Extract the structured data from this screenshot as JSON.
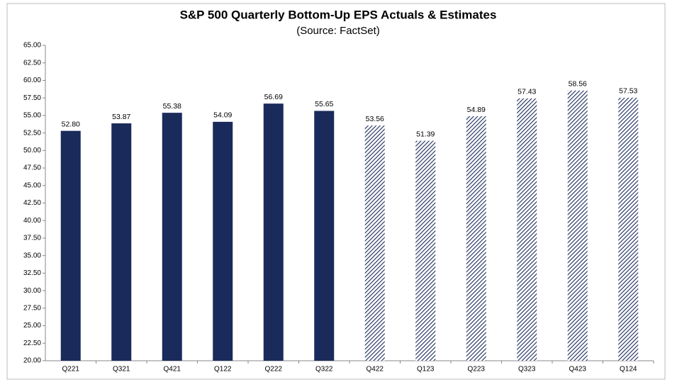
{
  "chart_data": {
    "type": "bar",
    "title": "S&P 500 Quarterly Bottom-Up EPS Actuals & Estimates",
    "subtitle": "(Source: FactSet)",
    "categories": [
      "Q221",
      "Q321",
      "Q421",
      "Q122",
      "Q222",
      "Q322",
      "Q422",
      "Q123",
      "Q223",
      "Q323",
      "Q423",
      "Q124"
    ],
    "values": [
      52.8,
      53.87,
      55.38,
      54.09,
      56.69,
      55.65,
      53.56,
      51.39,
      54.89,
      57.43,
      58.56,
      57.53
    ],
    "value_labels": [
      "52.80",
      "53.87",
      "55.38",
      "54.09",
      "56.69",
      "55.65",
      "53.56",
      "51.39",
      "54.89",
      "57.43",
      "58.56",
      "57.53"
    ],
    "bar_styles": [
      "solid",
      "solid",
      "solid",
      "solid",
      "solid",
      "solid",
      "hatched",
      "hatched",
      "hatched",
      "hatched",
      "hatched",
      "hatched"
    ],
    "color": "#1a2a5a",
    "ylim": [
      20,
      65
    ],
    "yticks": [
      {
        "value": 20,
        "label": "20.00"
      },
      {
        "value": 22.5,
        "label": "22.50"
      },
      {
        "value": 25,
        "label": "25.00"
      },
      {
        "value": 27.5,
        "label": "27.50"
      },
      {
        "value": 30,
        "label": "30.00"
      },
      {
        "value": 32.5,
        "label": "32.50"
      },
      {
        "value": 35,
        "label": "35.00"
      },
      {
        "value": 37.5,
        "label": "37.50"
      },
      {
        "value": 40,
        "label": "40.00"
      },
      {
        "value": 42.5,
        "label": "42.50"
      },
      {
        "value": 45,
        "label": "45.00"
      },
      {
        "value": 47.5,
        "label": "47.50"
      },
      {
        "value": 50,
        "label": "50.00"
      },
      {
        "value": 52.5,
        "label": "52.50"
      },
      {
        "value": 55,
        "label": "55.00"
      },
      {
        "value": 57.5,
        "label": "57.50"
      },
      {
        "value": 60,
        "label": "60.00"
      },
      {
        "value": 62.5,
        "label": "62.50"
      },
      {
        "value": 65,
        "label": "65.00"
      }
    ],
    "grid": false
  }
}
